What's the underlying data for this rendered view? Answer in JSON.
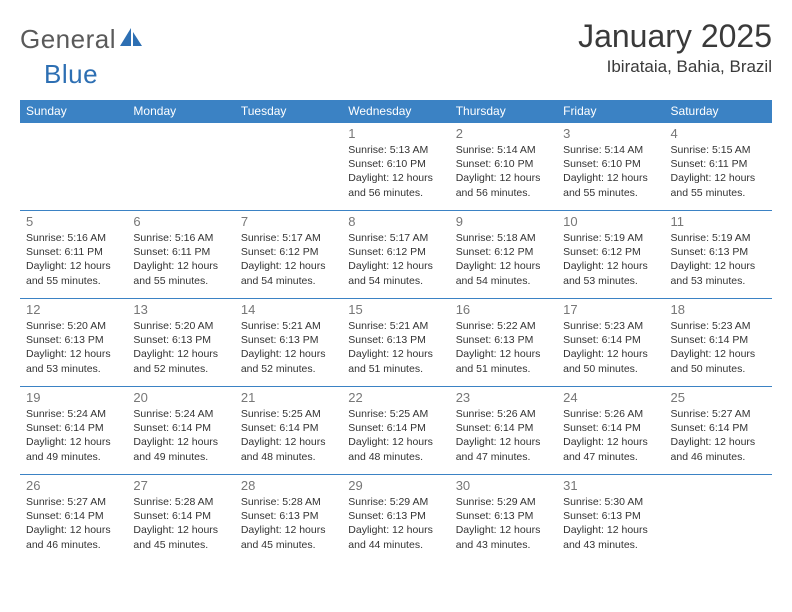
{
  "brand": {
    "part1": "General",
    "part2": "Blue"
  },
  "title": "January 2025",
  "location": "Ibirataia, Bahia, Brazil",
  "colors": {
    "header_bg": "#3b82c4",
    "header_text": "#ffffff",
    "row_border": "#3b82c4",
    "daynum_color": "#777777",
    "body_text": "#333333",
    "title_color": "#3a3a3a",
    "page_bg": "#ffffff",
    "logo_gray": "#5a5a5a",
    "logo_blue": "#2d6fb3"
  },
  "typography": {
    "title_fontsize": 32,
    "location_fontsize": 17,
    "dayheader_fontsize": 12,
    "daynum_fontsize": 13,
    "body_fontsize": 10.5,
    "font_family": "Arial"
  },
  "day_headers": [
    "Sunday",
    "Monday",
    "Tuesday",
    "Wednesday",
    "Thursday",
    "Friday",
    "Saturday"
  ],
  "weeks": [
    [
      null,
      null,
      null,
      {
        "n": "1",
        "sr": "5:13 AM",
        "ss": "6:10 PM",
        "dl": "12 hours and 56 minutes."
      },
      {
        "n": "2",
        "sr": "5:14 AM",
        "ss": "6:10 PM",
        "dl": "12 hours and 56 minutes."
      },
      {
        "n": "3",
        "sr": "5:14 AM",
        "ss": "6:10 PM",
        "dl": "12 hours and 55 minutes."
      },
      {
        "n": "4",
        "sr": "5:15 AM",
        "ss": "6:11 PM",
        "dl": "12 hours and 55 minutes."
      }
    ],
    [
      {
        "n": "5",
        "sr": "5:16 AM",
        "ss": "6:11 PM",
        "dl": "12 hours and 55 minutes."
      },
      {
        "n": "6",
        "sr": "5:16 AM",
        "ss": "6:11 PM",
        "dl": "12 hours and 55 minutes."
      },
      {
        "n": "7",
        "sr": "5:17 AM",
        "ss": "6:12 PM",
        "dl": "12 hours and 54 minutes."
      },
      {
        "n": "8",
        "sr": "5:17 AM",
        "ss": "6:12 PM",
        "dl": "12 hours and 54 minutes."
      },
      {
        "n": "9",
        "sr": "5:18 AM",
        "ss": "6:12 PM",
        "dl": "12 hours and 54 minutes."
      },
      {
        "n": "10",
        "sr": "5:19 AM",
        "ss": "6:12 PM",
        "dl": "12 hours and 53 minutes."
      },
      {
        "n": "11",
        "sr": "5:19 AM",
        "ss": "6:13 PM",
        "dl": "12 hours and 53 minutes."
      }
    ],
    [
      {
        "n": "12",
        "sr": "5:20 AM",
        "ss": "6:13 PM",
        "dl": "12 hours and 53 minutes."
      },
      {
        "n": "13",
        "sr": "5:20 AM",
        "ss": "6:13 PM",
        "dl": "12 hours and 52 minutes."
      },
      {
        "n": "14",
        "sr": "5:21 AM",
        "ss": "6:13 PM",
        "dl": "12 hours and 52 minutes."
      },
      {
        "n": "15",
        "sr": "5:21 AM",
        "ss": "6:13 PM",
        "dl": "12 hours and 51 minutes."
      },
      {
        "n": "16",
        "sr": "5:22 AM",
        "ss": "6:13 PM",
        "dl": "12 hours and 51 minutes."
      },
      {
        "n": "17",
        "sr": "5:23 AM",
        "ss": "6:14 PM",
        "dl": "12 hours and 50 minutes."
      },
      {
        "n": "18",
        "sr": "5:23 AM",
        "ss": "6:14 PM",
        "dl": "12 hours and 50 minutes."
      }
    ],
    [
      {
        "n": "19",
        "sr": "5:24 AM",
        "ss": "6:14 PM",
        "dl": "12 hours and 49 minutes."
      },
      {
        "n": "20",
        "sr": "5:24 AM",
        "ss": "6:14 PM",
        "dl": "12 hours and 49 minutes."
      },
      {
        "n": "21",
        "sr": "5:25 AM",
        "ss": "6:14 PM",
        "dl": "12 hours and 48 minutes."
      },
      {
        "n": "22",
        "sr": "5:25 AM",
        "ss": "6:14 PM",
        "dl": "12 hours and 48 minutes."
      },
      {
        "n": "23",
        "sr": "5:26 AM",
        "ss": "6:14 PM",
        "dl": "12 hours and 47 minutes."
      },
      {
        "n": "24",
        "sr": "5:26 AM",
        "ss": "6:14 PM",
        "dl": "12 hours and 47 minutes."
      },
      {
        "n": "25",
        "sr": "5:27 AM",
        "ss": "6:14 PM",
        "dl": "12 hours and 46 minutes."
      }
    ],
    [
      {
        "n": "26",
        "sr": "5:27 AM",
        "ss": "6:14 PM",
        "dl": "12 hours and 46 minutes."
      },
      {
        "n": "27",
        "sr": "5:28 AM",
        "ss": "6:14 PM",
        "dl": "12 hours and 45 minutes."
      },
      {
        "n": "28",
        "sr": "5:28 AM",
        "ss": "6:13 PM",
        "dl": "12 hours and 45 minutes."
      },
      {
        "n": "29",
        "sr": "5:29 AM",
        "ss": "6:13 PM",
        "dl": "12 hours and 44 minutes."
      },
      {
        "n": "30",
        "sr": "5:29 AM",
        "ss": "6:13 PM",
        "dl": "12 hours and 43 minutes."
      },
      {
        "n": "31",
        "sr": "5:30 AM",
        "ss": "6:13 PM",
        "dl": "12 hours and 43 minutes."
      },
      null
    ]
  ],
  "labels": {
    "sunrise": "Sunrise: ",
    "sunset": "Sunset: ",
    "daylight": "Daylight: "
  }
}
